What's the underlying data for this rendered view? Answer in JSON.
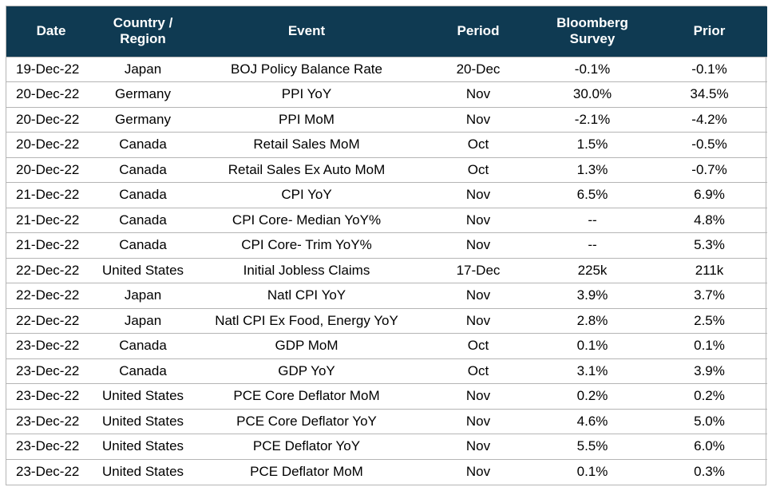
{
  "headers": {
    "date": "Date",
    "country": "Country / Region",
    "event": "Event",
    "period": "Period",
    "survey": "Bloomberg Survey",
    "prior": "Prior"
  },
  "rows": [
    {
      "date": "19-Dec-22",
      "country": "Japan",
      "event": "BOJ Policy Balance Rate",
      "period": "20-Dec",
      "survey": "-0.1%",
      "prior": "-0.1%"
    },
    {
      "date": "20-Dec-22",
      "country": "Germany",
      "event": "PPI YoY",
      "period": "Nov",
      "survey": "30.0%",
      "prior": "34.5%"
    },
    {
      "date": "20-Dec-22",
      "country": "Germany",
      "event": "PPI MoM",
      "period": "Nov",
      "survey": "-2.1%",
      "prior": "-4.2%"
    },
    {
      "date": "20-Dec-22",
      "country": "Canada",
      "event": "Retail Sales MoM",
      "period": "Oct",
      "survey": "1.5%",
      "prior": "-0.5%"
    },
    {
      "date": "20-Dec-22",
      "country": "Canada",
      "event": "Retail Sales Ex Auto MoM",
      "period": "Oct",
      "survey": "1.3%",
      "prior": "-0.7%"
    },
    {
      "date": "21-Dec-22",
      "country": "Canada",
      "event": "CPI YoY",
      "period": "Nov",
      "survey": "6.5%",
      "prior": "6.9%"
    },
    {
      "date": "21-Dec-22",
      "country": "Canada",
      "event": "CPI Core- Median YoY%",
      "period": "Nov",
      "survey": "--",
      "prior": "4.8%"
    },
    {
      "date": "21-Dec-22",
      "country": "Canada",
      "event": "CPI Core- Trim YoY%",
      "period": "Nov",
      "survey": "--",
      "prior": "5.3%"
    },
    {
      "date": "22-Dec-22",
      "country": "United States",
      "event": "Initial Jobless Claims",
      "period": "17-Dec",
      "survey": "225k",
      "prior": "211k"
    },
    {
      "date": "22-Dec-22",
      "country": "Japan",
      "event": "Natl CPI YoY",
      "period": "Nov",
      "survey": "3.9%",
      "prior": "3.7%"
    },
    {
      "date": "22-Dec-22",
      "country": "Japan",
      "event": "Natl CPI Ex Food, Energy YoY",
      "period": "Nov",
      "survey": "2.8%",
      "prior": "2.5%"
    },
    {
      "date": "23-Dec-22",
      "country": "Canada",
      "event": "GDP MoM",
      "period": "Oct",
      "survey": "0.1%",
      "prior": "0.1%"
    },
    {
      "date": "23-Dec-22",
      "country": "Canada",
      "event": "GDP YoY",
      "period": "Oct",
      "survey": "3.1%",
      "prior": "3.9%"
    },
    {
      "date": "23-Dec-22",
      "country": "United States",
      "event": "PCE Core Deflator MoM",
      "period": "Nov",
      "survey": "0.2%",
      "prior": "0.2%"
    },
    {
      "date": "23-Dec-22",
      "country": "United States",
      "event": "PCE Core Deflator YoY",
      "period": "Nov",
      "survey": "4.6%",
      "prior": "5.0%"
    },
    {
      "date": "23-Dec-22",
      "country": "United States",
      "event": "PCE Deflator YoY",
      "period": "Nov",
      "survey": "5.5%",
      "prior": "6.0%"
    },
    {
      "date": "23-Dec-22",
      "country": "United States",
      "event": "PCE Deflator MoM",
      "period": "Nov",
      "survey": "0.1%",
      "prior": "0.3%"
    }
  ],
  "colors": {
    "header_bg": "#0f3a52",
    "header_text": "#ffffff",
    "row_divider": "#b5b5b5"
  }
}
